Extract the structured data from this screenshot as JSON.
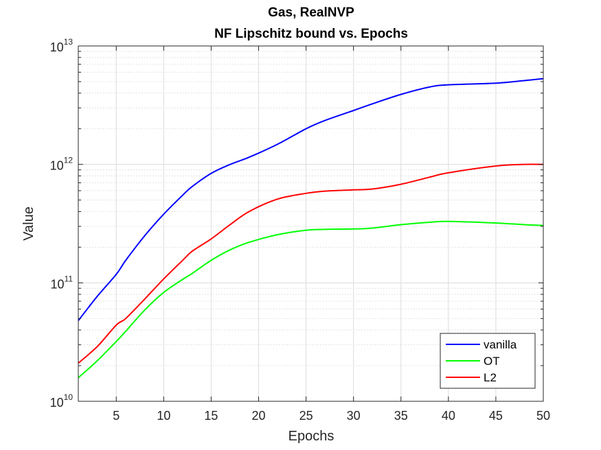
{
  "chart_data": {
    "type": "line",
    "title": "Gas, RealNVP",
    "subtitle": "NF Lipschitz bound vs. Epochs",
    "xlabel": "Epochs",
    "ylabel": "Value",
    "xlim": [
      1,
      50
    ],
    "ylim": [
      10000000000.0,
      10000000000000.0
    ],
    "yscale": "log",
    "grid": true,
    "minor_grid": true,
    "legend_position": "bottom-right",
    "x_ticks": [
      5,
      10,
      15,
      20,
      25,
      30,
      35,
      40,
      45,
      50
    ],
    "y_ticks": [
      {
        "value": 10000000000.0,
        "base": "10",
        "exp": "10"
      },
      {
        "value": 100000000000.0,
        "base": "10",
        "exp": "11"
      },
      {
        "value": 1000000000000.0,
        "base": "10",
        "exp": "12"
      },
      {
        "value": 10000000000000.0,
        "base": "10",
        "exp": "13"
      }
    ],
    "x": [
      1,
      3,
      5,
      6,
      8,
      10,
      12,
      13,
      15,
      17,
      19,
      22,
      25,
      27,
      30,
      32,
      35,
      38,
      40,
      45,
      48,
      50
    ],
    "series": [
      {
        "name": "vanilla",
        "color": "#0000ff",
        "values": [
          48000000000.0,
          77000000000.0,
          118000000000.0,
          155000000000.0,
          250000000000.0,
          380000000000.0,
          550000000000.0,
          650000000000.0,
          840000000000.0,
          1000000000000.0,
          1150000000000.0,
          1480000000000.0,
          2000000000000.0,
          2350000000000.0,
          2850000000000.0,
          3250000000000.0,
          3900000000000.0,
          4500000000000.0,
          4700000000000.0,
          4850000000000.0,
          5100000000000.0,
          5300000000000.0
        ]
      },
      {
        "name": "OT",
        "color": "#00ff00",
        "values": [
          15800000000.0,
          22000000000.0,
          32000000000.0,
          39000000000.0,
          59000000000.0,
          83000000000.0,
          107000000000.0,
          120000000000.0,
          155000000000.0,
          190000000000.0,
          220000000000.0,
          255000000000.0,
          278000000000.0,
          283000000000.0,
          285000000000.0,
          290000000000.0,
          310000000000.0,
          325000000000.0,
          330000000000.0,
          320000000000.0,
          310000000000.0,
          305000000000.0
        ]
      },
      {
        "name": "L2",
        "color": "#ff0000",
        "values": [
          21000000000.0,
          29000000000.0,
          44000000000.0,
          50000000000.0,
          73000000000.0,
          108000000000.0,
          155000000000.0,
          185000000000.0,
          235000000000.0,
          310000000000.0,
          400000000000.0,
          510000000000.0,
          570000000000.0,
          595000000000.0,
          610000000000.0,
          620000000000.0,
          680000000000.0,
          780000000000.0,
          850000000000.0,
          970000000000.0,
          1000000000000.0,
          1000000000000.0
        ]
      }
    ]
  }
}
